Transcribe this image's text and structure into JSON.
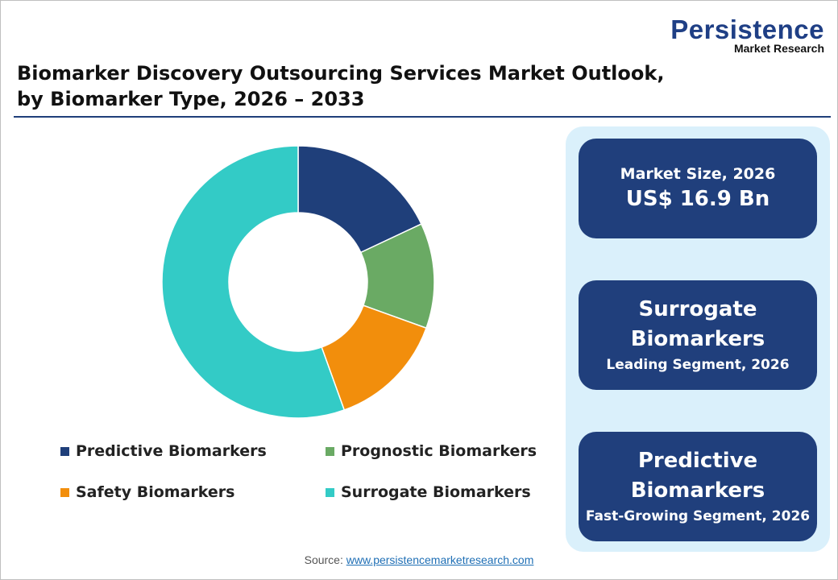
{
  "logo": {
    "main": "Persistence",
    "sub": "Market Research"
  },
  "title_line1": "Biomarker Discovery Outsourcing Services Market Outlook,",
  "title_line2": "by Biomarker Type, 2026 – 2033",
  "chart_data": {
    "type": "pie",
    "donut": true,
    "categories": [
      "Predictive Biomarkers",
      "Prognostic Biomarkers",
      "Safety Biomarkers",
      "Surrogate Biomarkers"
    ],
    "values": [
      18,
      12.5,
      14,
      55.5
    ],
    "colors": [
      "#1f3f7a",
      "#6aaa64",
      "#f28e0c",
      "#33cbc6"
    ],
    "legend_placement": "bottom"
  },
  "cards": [
    {
      "line1": "Market Size, 2026",
      "line2": "US$ 16.9 Bn"
    },
    {
      "line1": "Surrogate",
      "line2": "Biomarkers",
      "line3": "Leading Segment, 2026"
    },
    {
      "line1": "Predictive",
      "line2": "Biomarkers",
      "line3": "Fast-Growing Segment, 2026"
    }
  ],
  "source": {
    "label": "Source: ",
    "link": "www.persistencemarketresearch.com"
  }
}
